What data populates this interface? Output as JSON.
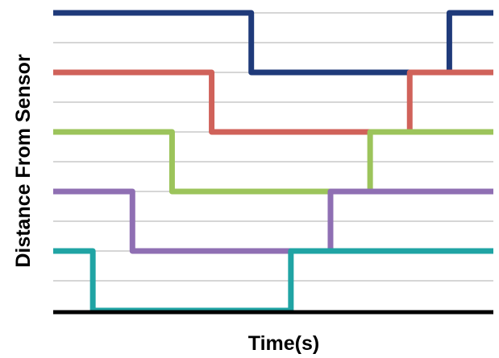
{
  "chart_data": {
    "type": "line",
    "xlabel": "Time(s)",
    "ylabel": "Distance From Sensor",
    "xlim": [
      0,
      100
    ],
    "ylim": [
      0,
      10
    ],
    "grid": true,
    "gridlines_y": [
      0,
      1,
      2,
      3,
      4,
      5,
      6,
      7,
      8,
      9,
      10
    ],
    "series": [
      {
        "color": "#1f3a7a",
        "x": [
          0,
          45,
          45,
          90,
          90,
          100
        ],
        "y": [
          10,
          10,
          8,
          8,
          10,
          10
        ]
      },
      {
        "color": "#d0625a",
        "x": [
          0,
          36,
          36,
          81,
          81,
          100
        ],
        "y": [
          8,
          8,
          6,
          6,
          8,
          8
        ]
      },
      {
        "color": "#9cc45b",
        "x": [
          0,
          27,
          27,
          72,
          72,
          100
        ],
        "y": [
          6,
          6,
          4,
          4,
          6,
          6
        ]
      },
      {
        "color": "#8f6fb3",
        "x": [
          0,
          18,
          18,
          63,
          63,
          100
        ],
        "y": [
          4,
          4,
          2,
          2,
          4,
          4
        ]
      },
      {
        "color": "#20a4a4",
        "x": [
          0,
          9,
          9,
          54,
          54,
          100
        ],
        "y": [
          2,
          2,
          0,
          0,
          2,
          2
        ]
      }
    ]
  }
}
